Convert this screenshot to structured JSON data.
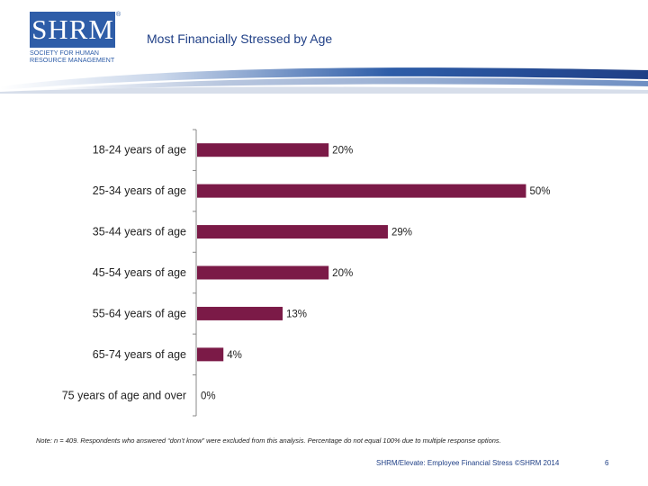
{
  "logo": {
    "letters": "SHRM",
    "registered": "®",
    "subtitle": "Society for Human Resource Management"
  },
  "title": "Most Financially Stressed by Age",
  "chart_data": {
    "type": "bar",
    "orientation": "horizontal",
    "categories": [
      "18-24 years of age",
      "25-34 years of age",
      "35-44 years of age",
      "45-54 years of age",
      "55-64 years of age",
      "65-74 years of age",
      "75 years of age and over"
    ],
    "values": [
      20,
      50,
      29,
      20,
      13,
      4,
      0
    ],
    "value_labels": [
      "20%",
      "50%",
      "29%",
      "20%",
      "13%",
      "4%",
      "0%"
    ],
    "xlim": [
      0,
      55
    ],
    "bar_color": "#7b1a47",
    "grid": false
  },
  "note": "Note: n = 409. Respondents who answered “don’t know” were excluded from this analysis. Percentage do not equal 100% due to multiple response options.",
  "footer": "SHRM/Elevate: Employee Financial Stress ©SHRM 2014",
  "page_number": "6"
}
